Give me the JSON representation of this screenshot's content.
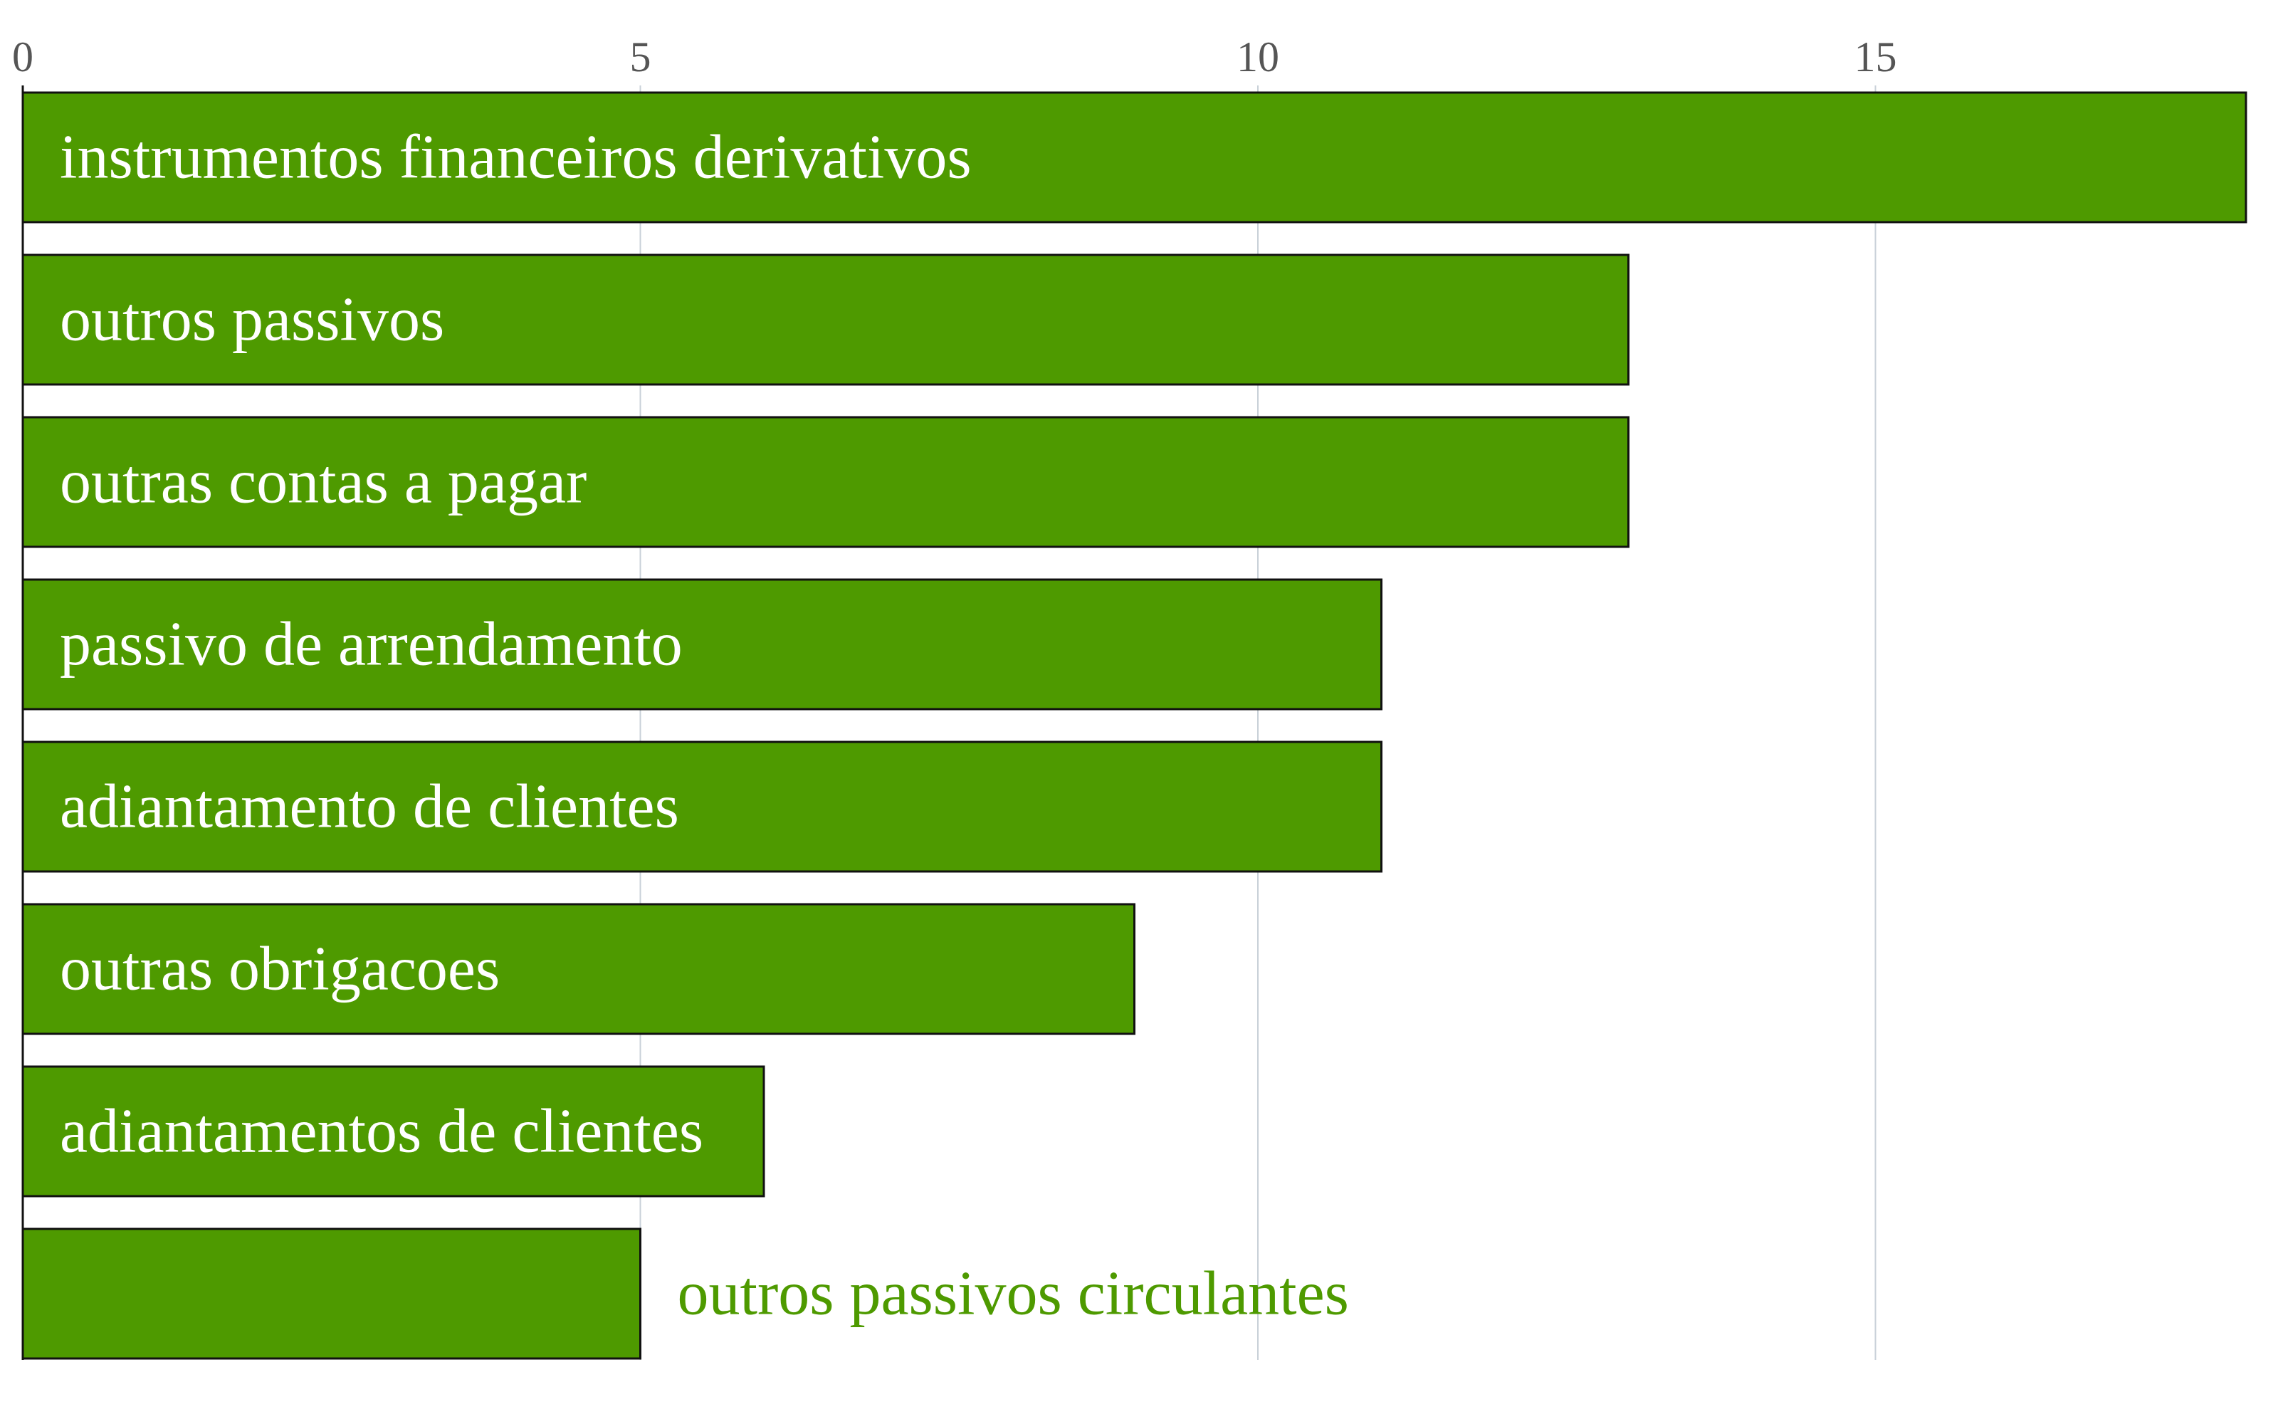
{
  "chart_data": {
    "type": "bar",
    "orientation": "horizontal",
    "title": "",
    "xlabel": "",
    "ylabel": "",
    "xlim": [
      0,
      18
    ],
    "grid": true,
    "ticks": [
      0,
      5,
      10,
      15
    ],
    "tick_labels": [
      "0",
      "5",
      "10",
      "15"
    ],
    "categories": [
      "instrumentos financeiros derivativos",
      "outros passivos",
      "outras contas a pagar",
      "passivo de arrendamento",
      "adiantamento de clientes",
      "outras obrigacoes",
      "adiantamentos de clientes",
      "outros passivos circulantes"
    ],
    "values": [
      18,
      13,
      13,
      11,
      11,
      9,
      6,
      5
    ],
    "colors": {
      "bar_fill": "#4e9a00",
      "bar_stroke": "#111111",
      "label_inside": "#ffffff",
      "label_outside": "#4e9a00",
      "grid": "#c8d0d8",
      "axis": "#111111",
      "tick_text": "#555555"
    }
  }
}
